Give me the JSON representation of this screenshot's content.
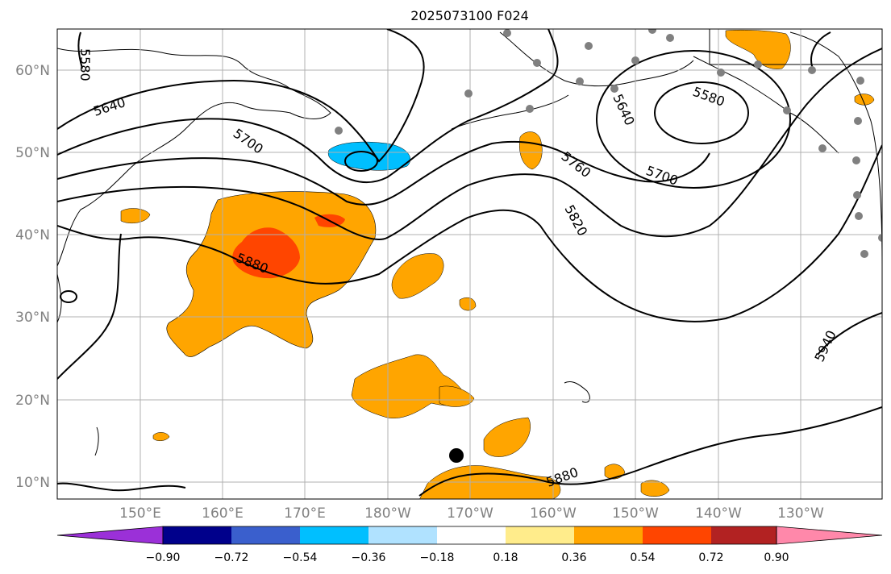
{
  "title": "2025073100 F024",
  "lat_labels": [
    "60°N",
    "50°N",
    "40°N",
    "30°N",
    "20°N",
    "10°N"
  ],
  "lon_labels": [
    "150°E",
    "160°E",
    "170°E",
    "180°W",
    "170°W",
    "160°W",
    "150°W",
    "140°W",
    "130°W"
  ],
  "contour_labels": [
    "5580",
    "5640",
    "5700",
    "5760",
    "5820",
    "5880",
    "5580",
    "5640",
    "5700",
    "5880",
    "5940"
  ],
  "colorbar": {
    "ticks": [
      "−0.90",
      "−0.72",
      "−0.54",
      "−0.36",
      "−0.18",
      "0.18",
      "0.36",
      "0.54",
      "0.72",
      "0.90"
    ],
    "colors": [
      "#9b30d8",
      "#00008b",
      "#3a5fcd",
      "#00bfff",
      "#b0e2ff",
      "#ffffff",
      "#ffec8b",
      "#ffa500",
      "#ff4500",
      "#b22222",
      "#ff88aa"
    ]
  },
  "colors": {
    "land_outline": "#000000",
    "grid": "#b0b0b0",
    "station_dot": "#808080",
    "orange": "#ffa500",
    "red_orange": "#ff4500",
    "cyan": "#00bfff"
  }
}
